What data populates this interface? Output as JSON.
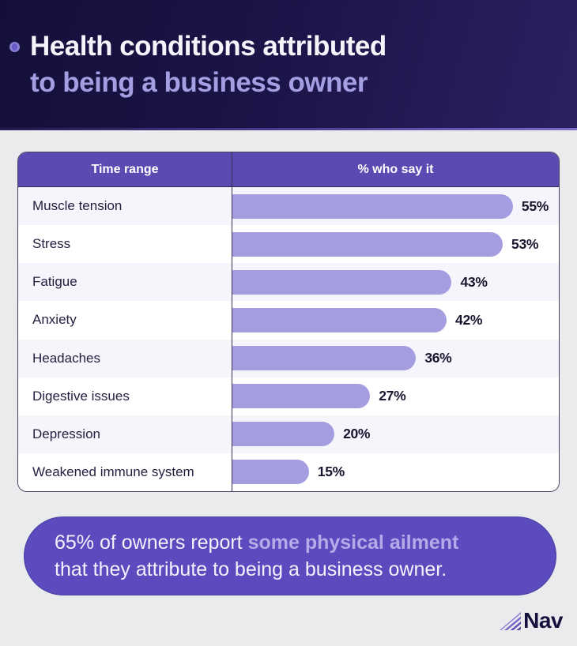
{
  "header": {
    "title_line1": "Health conditions attributed",
    "title_line2": "to being a business owner"
  },
  "chart_data": {
    "type": "bar",
    "orientation": "horizontal",
    "title": "Health conditions attributed to being a business owner",
    "categories": [
      "Muscle tension",
      "Stress",
      "Fatigue",
      "Anxiety",
      "Headaches",
      "Digestive issues",
      "Depression",
      "Weakened immune system"
    ],
    "values": [
      55,
      53,
      43,
      42,
      36,
      27,
      20,
      15
    ],
    "value_labels": [
      "55%",
      "53%",
      "43%",
      "42%",
      "36%",
      "27%",
      "20%",
      "15%"
    ],
    "xlabel": "% who say it",
    "ylabel": "Time range",
    "xlim": [
      0,
      64
    ],
    "grid": false,
    "legend": false,
    "bar_color": "#a49ee1",
    "annotation": "65% of owners report some physical ailment that they attribute to being a business owner."
  },
  "table": {
    "col1_header": "Time range",
    "col2_header": "% who say it",
    "header_bg": "#5a4bb2",
    "rows": [
      {
        "label": "Muscle tension",
        "value": 55,
        "display": "55%"
      },
      {
        "label": "Stress",
        "value": 53,
        "display": "53%"
      },
      {
        "label": "Fatigue",
        "value": 43,
        "display": "43%"
      },
      {
        "label": "Anxiety",
        "value": 42,
        "display": "42%"
      },
      {
        "label": "Headaches",
        "value": 36,
        "display": "36%"
      },
      {
        "label": "Digestive issues",
        "value": 27,
        "display": "27%"
      },
      {
        "label": "Depression",
        "value": 20,
        "display": "20%"
      },
      {
        "label": "Weakened immune system",
        "value": 15,
        "display": "15%"
      }
    ]
  },
  "banner": {
    "text_start": "65% of owners report ",
    "highlight": "some physical ailment",
    "line2": "that they attribute to being a business owner.",
    "bg": "#5c4bbe",
    "highlight_color": "#b5abe8"
  },
  "footer": {
    "brand": "Nav"
  }
}
